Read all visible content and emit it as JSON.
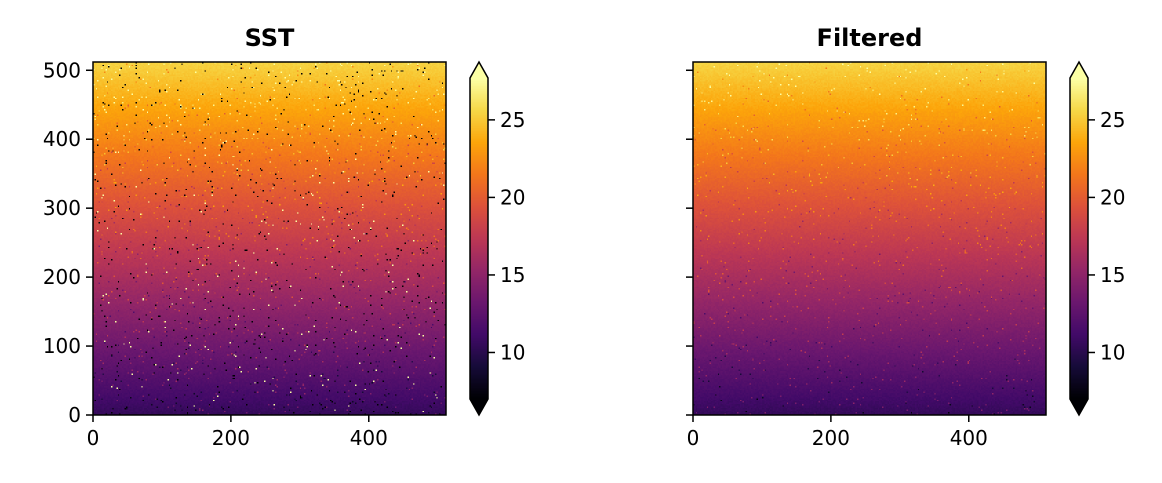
{
  "chart_data": [
    {
      "type": "heatmap",
      "title": "SST",
      "xlim": [
        0,
        512
      ],
      "ylim": [
        0,
        512
      ],
      "xticks": [
        0,
        200,
        400
      ],
      "yticks": [
        0,
        100,
        200,
        300,
        400,
        500
      ],
      "show_ytick_labels": true,
      "colormap": "inferno",
      "value_range": [
        7,
        27.7
      ],
      "gradient": {
        "bottom_value": 10.5,
        "top_value": 25.5
      },
      "speckle": "noisy",
      "colorbar": {
        "ticks": [
          10,
          15,
          20,
          25
        ],
        "extend": "both"
      }
    },
    {
      "type": "heatmap",
      "title": "Filtered",
      "xlim": [
        0,
        512
      ],
      "ylim": [
        0,
        512
      ],
      "xticks": [
        0,
        200,
        400
      ],
      "yticks": [
        0,
        100,
        200,
        300,
        400,
        500
      ],
      "show_ytick_labels": false,
      "colormap": "inferno",
      "value_range": [
        7,
        27.7
      ],
      "gradient": {
        "bottom_value": 10.5,
        "top_value": 25.5
      },
      "speckle": "smoothed",
      "colorbar": {
        "ticks": [
          10,
          15,
          20,
          25
        ],
        "extend": "both"
      }
    }
  ]
}
